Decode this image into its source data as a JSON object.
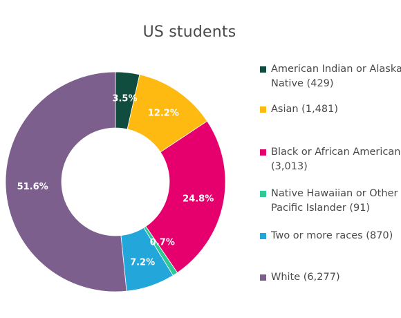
{
  "chart_data": {
    "type": "pie",
    "variant": "donut",
    "title": "US students",
    "legend_position": "right",
    "series": [
      {
        "name": "American Indian or Alaska Native (429)",
        "count": 429,
        "percent": 3.5,
        "label": "3.5%",
        "color": "#114d3f"
      },
      {
        "name": "Asian (1,481)",
        "count": 1481,
        "percent": 12.2,
        "label": "12.2%",
        "color": "#ffba12"
      },
      {
        "name": "Black or African American (3,013)",
        "count": 3013,
        "percent": 24.8,
        "label": "24.8%",
        "color": "#e6006d"
      },
      {
        "name": "Native Hawaiian or Other Pacific Islander (91)",
        "count": 91,
        "percent": 0.7,
        "label": "0.7%",
        "color": "#2ec995"
      },
      {
        "name": "Two or more races (870)",
        "count": 870,
        "percent": 7.2,
        "label": "7.2%",
        "color": "#23a6d9"
      },
      {
        "name": "White (6,277)",
        "count": 6277,
        "percent": 51.6,
        "label": "51.6%",
        "color": "#7d5f8d"
      }
    ]
  }
}
